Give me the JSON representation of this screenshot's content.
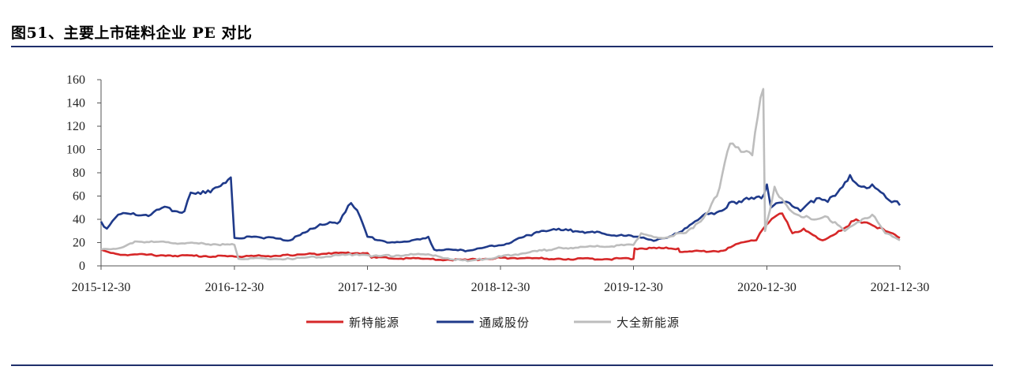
{
  "figure": {
    "title": "图51、主要上市硅料企业 PE 对比"
  },
  "chart_data": {
    "type": "line",
    "title": "图51、主要上市硅料企业 PE 对比",
    "xlabel": "",
    "ylabel": "",
    "ylim": [
      0,
      160
    ],
    "yticks": [
      0,
      20,
      40,
      60,
      80,
      100,
      120,
      140,
      160
    ],
    "xlim": [
      "2015-12-30",
      "2021-12-30"
    ],
    "xticks": [
      "2015-12-30",
      "2016-12-30",
      "2017-12-30",
      "2018-12-30",
      "2019-12-30",
      "2020-12-30",
      "2021-12-30"
    ],
    "grid": false,
    "legend_position": "bottom",
    "series": [
      {
        "name": "新特能源",
        "color": "#d62728",
        "points": [
          [
            "2015-12-30",
            14
          ],
          [
            "2016-02-15",
            10
          ],
          [
            "2016-07-01",
            9
          ],
          [
            "2016-12-30",
            8
          ],
          [
            "2017-06-01",
            9
          ],
          [
            "2017-09-15",
            11
          ],
          [
            "2017-12-30",
            11
          ],
          [
            "2018-01-10",
            7
          ],
          [
            "2018-06-01",
            6
          ],
          [
            "2018-10-01",
            5
          ],
          [
            "2018-12-30",
            7
          ],
          [
            "2019-06-01",
            6
          ],
          [
            "2019-12-30",
            6
          ],
          [
            "2020-01-02",
            15
          ],
          [
            "2020-05-01",
            15
          ],
          [
            "2020-05-05",
            12
          ],
          [
            "2020-09-01",
            13
          ],
          [
            "2020-10-20",
            20
          ],
          [
            "2020-12-01",
            22
          ],
          [
            "2020-12-20",
            32
          ],
          [
            "2021-01-20",
            42
          ],
          [
            "2021-02-10",
            45
          ],
          [
            "2021-03-10",
            28
          ],
          [
            "2021-04-10",
            32
          ],
          [
            "2021-06-01",
            22
          ],
          [
            "2021-07-15",
            30
          ],
          [
            "2021-09-01",
            40
          ],
          [
            "2021-10-15",
            35
          ],
          [
            "2021-11-20",
            30
          ],
          [
            "2021-12-30",
            24
          ]
        ]
      },
      {
        "name": "通威股份",
        "color": "#1f3a8a",
        "points": [
          [
            "2015-12-30",
            38
          ],
          [
            "2016-01-15",
            32
          ],
          [
            "2016-02-15",
            44
          ],
          [
            "2016-05-15",
            44
          ],
          [
            "2016-06-15",
            50
          ],
          [
            "2016-08-15",
            47
          ],
          [
            "2016-09-01",
            63
          ],
          [
            "2016-11-01",
            66
          ],
          [
            "2016-12-20",
            76
          ],
          [
            "2016-12-30",
            24
          ],
          [
            "2017-03-01",
            25
          ],
          [
            "2017-06-01",
            22
          ],
          [
            "2017-08-15",
            34
          ],
          [
            "2017-10-15",
            38
          ],
          [
            "2017-11-15",
            54
          ],
          [
            "2017-12-10",
            42
          ],
          [
            "2017-12-30",
            25
          ],
          [
            "2018-03-01",
            20
          ],
          [
            "2018-05-01",
            22
          ],
          [
            "2018-06-15",
            25
          ],
          [
            "2018-07-01",
            14
          ],
          [
            "2018-10-01",
            13
          ],
          [
            "2019-01-15",
            19
          ],
          [
            "2019-04-01",
            28
          ],
          [
            "2019-06-01",
            31
          ],
          [
            "2019-09-01",
            29
          ],
          [
            "2019-12-30",
            25
          ],
          [
            "2020-03-01",
            22
          ],
          [
            "2020-04-15",
            26
          ],
          [
            "2020-06-01",
            35
          ],
          [
            "2020-07-15",
            45
          ],
          [
            "2020-08-15",
            46
          ],
          [
            "2020-10-01",
            55
          ],
          [
            "2020-12-15",
            58
          ],
          [
            "2020-12-30",
            70
          ],
          [
            "2021-01-10",
            50
          ],
          [
            "2021-02-15",
            55
          ],
          [
            "2021-04-01",
            47
          ],
          [
            "2021-05-15",
            58
          ],
          [
            "2021-06-15",
            55
          ],
          [
            "2021-08-15",
            78
          ],
          [
            "2021-09-15",
            68
          ],
          [
            "2021-10-15",
            70
          ],
          [
            "2021-11-15",
            62
          ],
          [
            "2021-12-30",
            52
          ]
        ]
      },
      {
        "name": "大全新能源",
        "color": "#bdbdbd",
        "points": [
          [
            "2015-12-30",
            14
          ],
          [
            "2016-02-15",
            15
          ],
          [
            "2016-04-01",
            21
          ],
          [
            "2016-12-30",
            18
          ],
          [
            "2017-01-10",
            6
          ],
          [
            "2017-06-01",
            6
          ],
          [
            "2017-12-01",
            10
          ],
          [
            "2018-01-10",
            8
          ],
          [
            "2018-06-01",
            10
          ],
          [
            "2018-10-01",
            4
          ],
          [
            "2019-01-01",
            8
          ],
          [
            "2019-06-01",
            15
          ],
          [
            "2019-12-30",
            18
          ],
          [
            "2020-01-20",
            28
          ],
          [
            "2020-03-15",
            24
          ],
          [
            "2020-05-15",
            28
          ],
          [
            "2020-07-01",
            38
          ],
          [
            "2020-08-15",
            60
          ],
          [
            "2020-09-20",
            105
          ],
          [
            "2020-10-20",
            98
          ],
          [
            "2020-11-20",
            95
          ],
          [
            "2020-12-05",
            128
          ],
          [
            "2020-12-20",
            152
          ],
          [
            "2020-12-25",
            30
          ],
          [
            "2021-01-20",
            68
          ],
          [
            "2021-02-15",
            55
          ],
          [
            "2021-03-15",
            45
          ],
          [
            "2021-05-01",
            40
          ],
          [
            "2021-06-15",
            42
          ],
          [
            "2021-08-01",
            30
          ],
          [
            "2021-10-15",
            44
          ],
          [
            "2021-11-20",
            28
          ],
          [
            "2021-12-30",
            22
          ]
        ]
      }
    ]
  }
}
